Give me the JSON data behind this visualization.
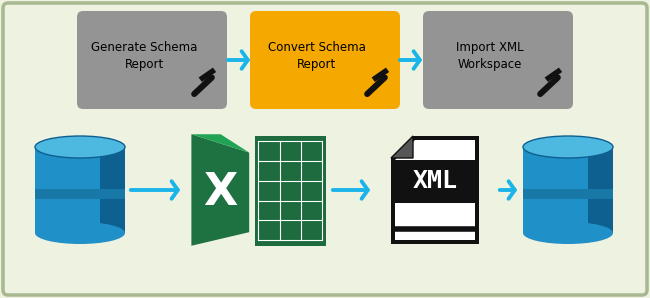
{
  "bg_color": "#eef2e0",
  "border_color": "#a8b890",
  "arrow_color": "#1ab4e8",
  "box1_label": "Generate Schema\nReport",
  "box2_label": "Convert Schema\nReport",
  "box3_label": "Import XML\nWorkspace",
  "box1_color": "#949494",
  "box2_color": "#f5a800",
  "box3_color": "#949494",
  "text_color": "#111111",
  "db_body_light": "#4db8e0",
  "db_body_mid": "#2090c8",
  "db_body_dark": "#0e6090",
  "db_stripe": "#1878a8",
  "xml_border": "#111111",
  "xml_bg": "#ffffff",
  "xml_band": "#111111",
  "xml_text": "#ffffff",
  "excel_green_dark": "#1e7140",
  "excel_green_mid": "#21a356",
  "excel_green_light": "#33c065",
  "excel_grid_bg": "#1d6b3e",
  "excel_white": "#ffffff"
}
